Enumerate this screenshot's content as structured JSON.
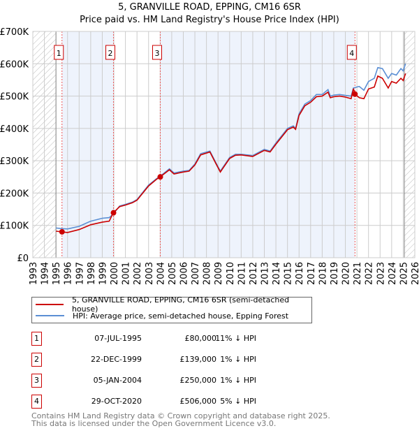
{
  "chart_data": {
    "type": "line",
    "title": "5, GRANVILLE ROAD, EPPING, CM16 6SR",
    "subtitle": "Price paid vs. HM Land Registry's House Price Index (HPI)",
    "xlim": [
      1993,
      2026
    ],
    "ylim": [
      0,
      700000
    ],
    "x_ticks": [
      "1993",
      "1994",
      "1995",
      "1996",
      "1997",
      "1998",
      "1999",
      "2000",
      "2001",
      "2002",
      "2003",
      "2004",
      "2005",
      "2006",
      "2007",
      "2008",
      "2009",
      "2010",
      "2011",
      "2012",
      "2013",
      "2014",
      "2015",
      "2016",
      "2017",
      "2018",
      "2019",
      "2020",
      "2021",
      "2022",
      "2023",
      "2024",
      "2025",
      "2026"
    ],
    "y_ticks": [
      {
        "v": 0,
        "label": "£0"
      },
      {
        "v": 100000,
        "label": "£100K"
      },
      {
        "v": 200000,
        "label": "£200K"
      },
      {
        "v": 300000,
        "label": "£300K"
      },
      {
        "v": 400000,
        "label": "£400K"
      },
      {
        "v": 500000,
        "label": "£500K"
      },
      {
        "v": 600000,
        "label": "£600K"
      },
      {
        "v": 700000,
        "label": "£700K"
      }
    ],
    "grid": true,
    "series": [
      {
        "name": "HPI: Average price, semi-detached house, Epping Forest",
        "color": "#5b8fd4",
        "x": [
          1995.0,
          1995.5,
          1996,
          1997,
          1998,
          1999,
          1999.6,
          1999.95,
          2000.5,
          2001,
          2001.6,
          2002,
          2003,
          2003.7,
          2004,
          2004.8,
          2005.2,
          2006,
          2006.5,
          2007,
          2007.5,
          2008.3,
          2008.8,
          2009.2,
          2010,
          2010.5,
          2011,
          2012,
          2013,
          2013.5,
          2014,
          2015,
          2015.5,
          2015.7,
          2016,
          2016.5,
          2017,
          2017.5,
          2018,
          2018.5,
          2018.7,
          2019,
          2019.5,
          2020,
          2020.5,
          2020.7,
          2021.2,
          2021.6,
          2022,
          2022.5,
          2022.8,
          2023.2,
          2023.7,
          2024,
          2024.4,
          2024.8,
          2025.0,
          2025.2
        ],
        "y": [
          92000,
          90000,
          89000,
          97000,
          113000,
          122000,
          124000,
          135000,
          160000,
          165000,
          172000,
          180000,
          225000,
          245000,
          252000,
          275000,
          262000,
          268000,
          270000,
          290000,
          322000,
          330000,
          295000,
          268000,
          310000,
          320000,
          320000,
          316000,
          335000,
          330000,
          355000,
          400000,
          408000,
          400000,
          445000,
          475000,
          486000,
          505000,
          505000,
          520000,
          500000,
          503000,
          505000,
          502000,
          500000,
          525000,
          530000,
          518000,
          545000,
          555000,
          588000,
          585000,
          555000,
          570000,
          565000,
          585000,
          578000,
          600000
        ]
      },
      {
        "name": "5, GRANVILLE ROAD, EPPING, CM16 6SR (semi-detached house)",
        "color": "#cc0000",
        "x": [
          1995.0,
          1995.5,
          1996,
          1997,
          1998,
          1999,
          1999.6,
          1999.95,
          2000.5,
          2001,
          2001.6,
          2002,
          2003,
          2003.7,
          2004,
          2004.8,
          2005.2,
          2006,
          2006.5,
          2007,
          2007.5,
          2008.3,
          2008.8,
          2009.2,
          2010,
          2010.5,
          2011,
          2012,
          2013,
          2013.5,
          2014,
          2015,
          2015.5,
          2015.7,
          2016,
          2016.5,
          2017,
          2017.5,
          2018,
          2018.5,
          2018.7,
          2019,
          2019.5,
          2020,
          2020.5,
          2020.7,
          2020.83,
          2021.2,
          2021.6,
          2022,
          2022.5,
          2022.8,
          2023.2,
          2023.7,
          2024,
          2024.4,
          2024.8,
          2025.0,
          2025.2
        ],
        "y": [
          82000,
          80000,
          78000,
          87000,
          102000,
          110000,
          113000,
          139000,
          158000,
          163000,
          170000,
          178000,
          222000,
          243000,
          250000,
          272000,
          259000,
          265000,
          268000,
          287000,
          318000,
          327000,
          292000,
          265000,
          307000,
          317000,
          318000,
          313000,
          332000,
          327000,
          351000,
          396000,
          404000,
          397000,
          440000,
          470000,
          481000,
          498000,
          500000,
          512000,
          495000,
          498000,
          500000,
          497000,
          492000,
          523000,
          506000,
          495000,
          492000,
          522000,
          528000,
          562000,
          555000,
          525000,
          545000,
          540000,
          555000,
          548000,
          570000
        ]
      }
    ],
    "sales": [
      {
        "n": "1",
        "x": 1995.52,
        "y": 80000
      },
      {
        "n": "2",
        "x": 1999.97,
        "y": 139000
      },
      {
        "n": "3",
        "x": 2004.01,
        "y": 250000
      },
      {
        "n": "4",
        "x": 2020.83,
        "y": 506000
      }
    ],
    "hatch_ranges": [
      [
        1993,
        1995.0
      ],
      [
        2025.1,
        2026
      ]
    ]
  },
  "legend": {
    "red": "5, GRANVILLE ROAD, EPPING, CM16 6SR (semi-detached house)",
    "blue": "HPI: Average price, semi-detached house, Epping Forest"
  },
  "transactions": [
    {
      "n": "1",
      "date": "07-JUL-1995",
      "price": "£80,000",
      "hpi": "11% ↓ HPI"
    },
    {
      "n": "2",
      "date": "22-DEC-1999",
      "price": "£139,000",
      "hpi": "1% ↓ HPI"
    },
    {
      "n": "3",
      "date": "05-JAN-2004",
      "price": "£250,000",
      "hpi": "1% ↓ HPI"
    },
    {
      "n": "4",
      "date": "29-OCT-2020",
      "price": "£506,000",
      "hpi": "5% ↓ HPI"
    }
  ],
  "footer": {
    "line1": "Contains HM Land Registry data © Crown copyright and database right 2025.",
    "line2": "This data is licensed under the Open Government Licence v3.0."
  }
}
